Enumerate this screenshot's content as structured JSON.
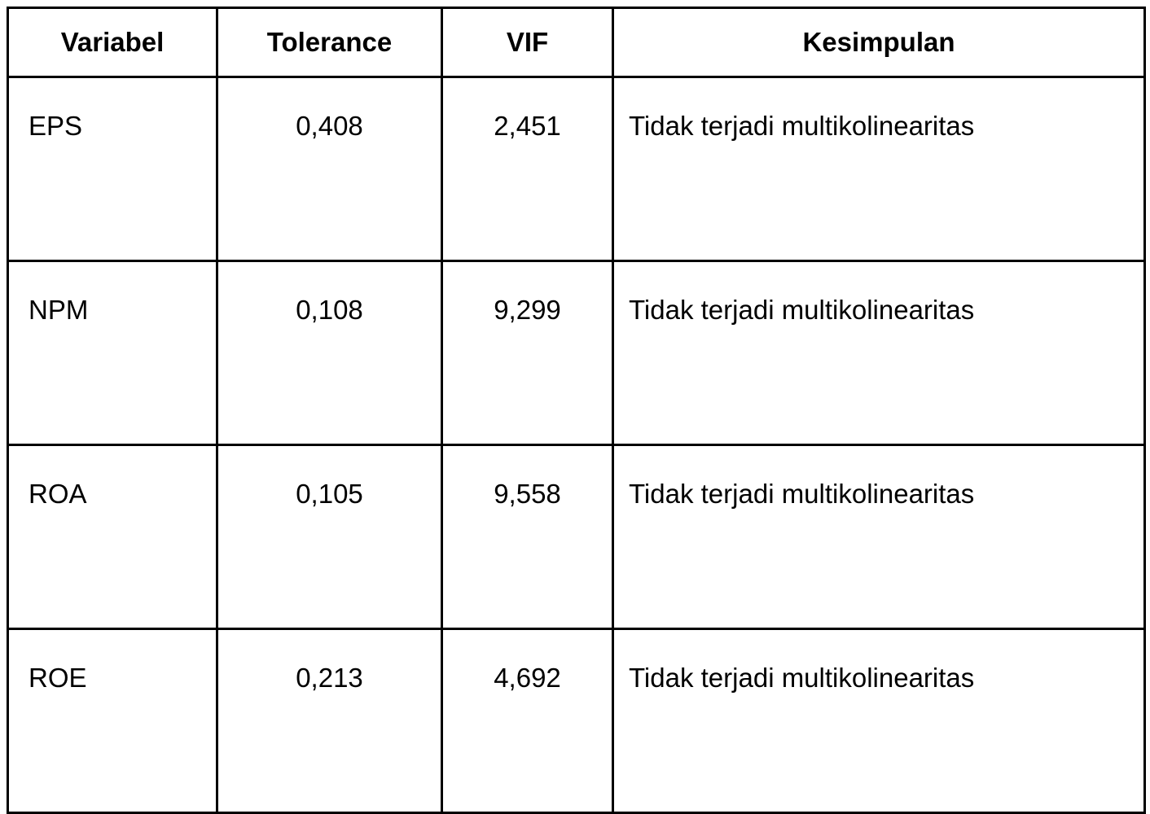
{
  "table": {
    "columns": [
      "Variabel",
      "Tolerance",
      "VIF",
      "Kesimpulan"
    ],
    "rows": [
      {
        "variabel": "EPS",
        "tolerance": "0,408",
        "vif": "2,451",
        "kesimpulan": "Tidak terjadi multikolinearitas"
      },
      {
        "variabel": "NPM",
        "tolerance": "0,108",
        "vif": "9,299",
        "kesimpulan": "Tidak terjadi multikolinearitas"
      },
      {
        "variabel": "ROA",
        "tolerance": "0,105",
        "vif": "9,558",
        "kesimpulan": "Tidak terjadi multikolinearitas"
      },
      {
        "variabel": "ROE",
        "tolerance": "0,213",
        "vif": "4,692",
        "kesimpulan": "Tidak terjadi multikolinearitas"
      }
    ]
  }
}
